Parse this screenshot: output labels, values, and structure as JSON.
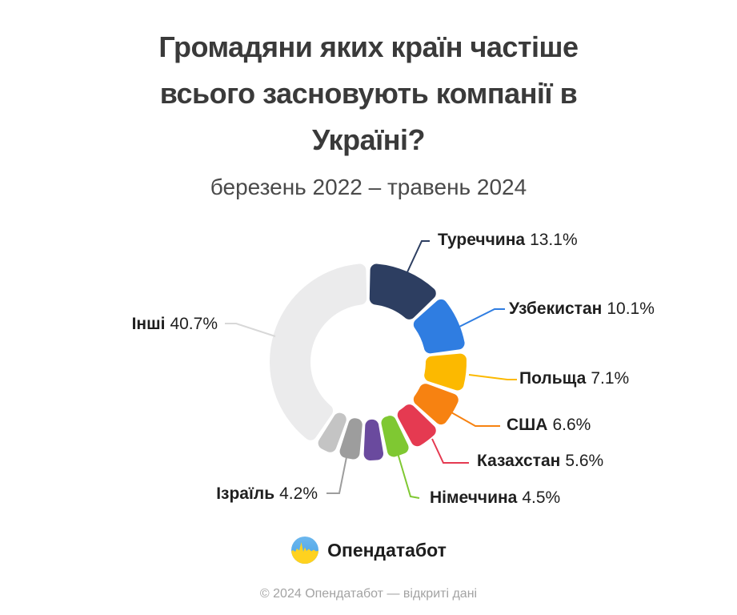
{
  "header": {
    "title_lines": [
      "Громадяни яких країн частіше",
      "всього засновують компанії в",
      "Україні?"
    ],
    "subtitle": "березень 2022 – травень 2024"
  },
  "chart_data": {
    "type": "pie",
    "donut": true,
    "title": "Громадяни яких країн частіше всього засновують компанії в Україні?",
    "subtitle": "березень 2022 – травень 2024",
    "unit": "%",
    "start_angle_deg": 0,
    "direction": "clockwise",
    "segments": [
      {
        "label": "Туреччина",
        "value": 13.1,
        "value_label": "13.1%",
        "color": "#2d3e61"
      },
      {
        "label": "Узбекистан",
        "value": 10.1,
        "value_label": "10.1%",
        "color": "#2f7de1"
      },
      {
        "label": "Польща",
        "value": 7.1,
        "value_label": "7.1%",
        "color": "#fcb900"
      },
      {
        "label": "США",
        "value": 6.6,
        "value_label": "6.6%",
        "color": "#f78211"
      },
      {
        "label": "Казахстан",
        "value": 5.6,
        "value_label": "5.6%",
        "color": "#e53a51"
      },
      {
        "label": "Німеччина",
        "value": 4.5,
        "value_label": "4.5%",
        "color": "#7fc832"
      },
      {
        "label": "",
        "value": 4.1,
        "value_label": "",
        "color": "#6a4a9e"
      },
      {
        "label": "Ізраїль",
        "value": 4.2,
        "value_label": "4.2%",
        "color": "#9d9d9d"
      },
      {
        "label": "",
        "value": 4.0,
        "value_label": "",
        "color": "#c4c4c4"
      },
      {
        "label": "Інші",
        "value": 40.7,
        "value_label": "40.7%",
        "color": "#ebebec",
        "line_color": "#d8d8d8"
      }
    ]
  },
  "footer": {
    "brand": "Опендатабот",
    "copyright": "© 2024 Опендатабот — відкриті дані"
  }
}
